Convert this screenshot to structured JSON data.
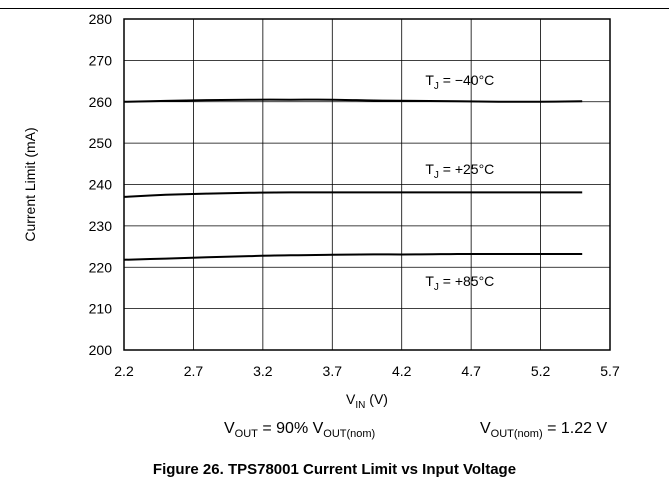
{
  "chart_data": {
    "type": "line",
    "xlabel": {
      "main": "V",
      "sub": "IN",
      "unit": " (V)"
    },
    "ylabel": "Current Limit (mA)",
    "xlim": [
      2.2,
      5.7
    ],
    "ylim": [
      200,
      280
    ],
    "xticks": [
      "2.2",
      "2.7",
      "3.2",
      "3.7",
      "4.2",
      "4.7",
      "5.2",
      "5.7"
    ],
    "yticks": [
      "200",
      "210",
      "220",
      "230",
      "240",
      "250",
      "260",
      "270",
      "280"
    ],
    "grid": true,
    "series": [
      {
        "name": "T_J = −40°C",
        "label": {
          "main": "T",
          "sub": "J",
          "rest": " = −40°C",
          "x": 4.37,
          "y": 264
        },
        "x": [
          2.2,
          2.5,
          2.8,
          3.1,
          3.4,
          3.7,
          4.0,
          4.3,
          4.6,
          4.9,
          5.2,
          5.5
        ],
        "y": [
          260.0,
          260.2,
          260.4,
          260.5,
          260.5,
          260.5,
          260.3,
          260.2,
          260.1,
          260.0,
          260.0,
          260.1
        ]
      },
      {
        "name": "T_J = +25°C",
        "label": {
          "main": "T",
          "sub": "J",
          "rest": " = +25°C",
          "x": 4.37,
          "y": 242.5
        },
        "x": [
          2.2,
          2.5,
          2.8,
          3.1,
          3.4,
          3.7,
          4.0,
          4.3,
          4.6,
          4.9,
          5.2,
          5.5
        ],
        "y": [
          237.0,
          237.5,
          237.8,
          238.0,
          238.1,
          238.1,
          238.1,
          238.1,
          238.1,
          238.1,
          238.1,
          238.1
        ]
      },
      {
        "name": "T_J = +85°C",
        "label": {
          "main": "T",
          "sub": "J",
          "rest": " = +85°C",
          "x": 4.37,
          "y": 215.5
        },
        "x": [
          2.2,
          2.5,
          2.8,
          3.1,
          3.4,
          3.7,
          4.0,
          4.3,
          4.6,
          4.9,
          5.2,
          5.5
        ],
        "y": [
          221.8,
          222.1,
          222.4,
          222.7,
          222.9,
          223.0,
          223.1,
          223.1,
          223.2,
          223.2,
          223.2,
          223.2
        ]
      }
    ]
  },
  "conditions": {
    "left": {
      "v": "V",
      "sub1": "OUT",
      "mid": " = 90% V",
      "sub2": "OUT(nom)"
    },
    "right": {
      "v": "V",
      "sub": "OUT(nom)",
      "rest": " = 1.22 V"
    }
  },
  "caption": "Figure 26. TPS78001 Current Limit vs Input Voltage"
}
